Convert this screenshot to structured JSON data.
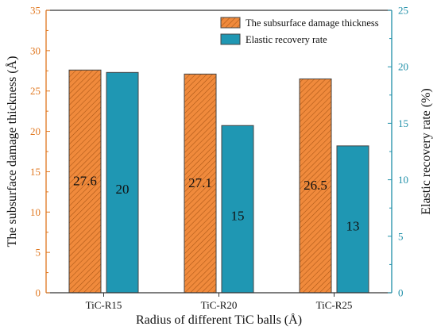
{
  "chart_data": {
    "type": "bar",
    "categories": [
      "TiC-R15",
      "TiC-R20",
      "TiC-R25"
    ],
    "xlabel": "Radius of different TiC balls (Å)",
    "y_left": {
      "label": "The subsurface damage thickness (Å)",
      "lim": [
        0,
        35
      ],
      "ticks": [
        0,
        5,
        10,
        15,
        20,
        25,
        30,
        35
      ],
      "color": "#e0771f"
    },
    "y_right": {
      "label": "Elastic recovery rate (%)",
      "lim": [
        0,
        25
      ],
      "ticks": [
        0,
        5,
        10,
        15,
        20,
        25
      ],
      "color": "#1f8fa8"
    },
    "series": [
      {
        "name": "The subsurface damage thickness",
        "axis": "left",
        "values": [
          27.6,
          27.1,
          26.5
        ],
        "data_labels": [
          "27.6",
          "27.1",
          "26.5"
        ],
        "color": "#f08a3c",
        "pattern": "diagonal-hatch"
      },
      {
        "name": "Elastic recovery rate",
        "axis": "right",
        "values": [
          19.5,
          14.8,
          13.0
        ],
        "data_labels": [
          "20",
          "15",
          "13"
        ],
        "color": "#1f97b3",
        "pattern": "solid"
      }
    ],
    "legend_position": "top-right",
    "grid": false
  }
}
